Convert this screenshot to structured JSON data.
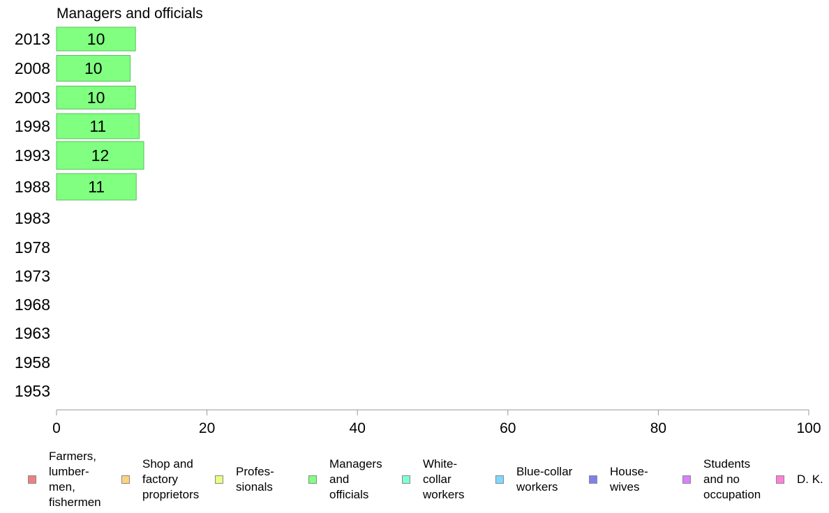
{
  "chart_data": {
    "type": "bar",
    "orientation": "horizontal",
    "title": "Managers and officials",
    "categories": [
      "2013",
      "2008",
      "2003",
      "1998",
      "1993",
      "1988",
      "1983",
      "1978",
      "1973",
      "1968",
      "1963",
      "1958",
      "1953"
    ],
    "series": [
      {
        "name": "Managers and officials",
        "values": [
          10.5,
          9.8,
          10.5,
          11.0,
          11.6,
          10.6,
          null,
          null,
          null,
          null,
          null,
          null,
          null
        ],
        "labels": [
          "10",
          "10",
          "10",
          "11",
          "12",
          "11",
          "",
          "",
          "",
          "",
          "",
          "",
          ""
        ],
        "color": "#80ff80"
      }
    ],
    "xlim": [
      0,
      100
    ],
    "xticks": [
      "0",
      "20",
      "40",
      "60",
      "80",
      "100"
    ],
    "xlabel": "",
    "ylabel": "",
    "grid": false,
    "legend_position": "bottom",
    "legend": [
      {
        "label": "Farmers, lumber- men, fishermen",
        "color": "#f08080"
      },
      {
        "label": "Shop and factory proprietors",
        "color": "#ffd27f"
      },
      {
        "label": "Profes- sionals",
        "color": "#e8ff80"
      },
      {
        "label": "Managers and officials",
        "color": "#80ff80"
      },
      {
        "label": "White- collar workers",
        "color": "#80ffd8"
      },
      {
        "label": "Blue-collar workers",
        "color": "#80d8ff"
      },
      {
        "label": "House- wives",
        "color": "#8080f0"
      },
      {
        "label": "Students and no occupation",
        "color": "#d880ff"
      },
      {
        "label": "D. K.",
        "color": "#ff80d8"
      }
    ]
  }
}
